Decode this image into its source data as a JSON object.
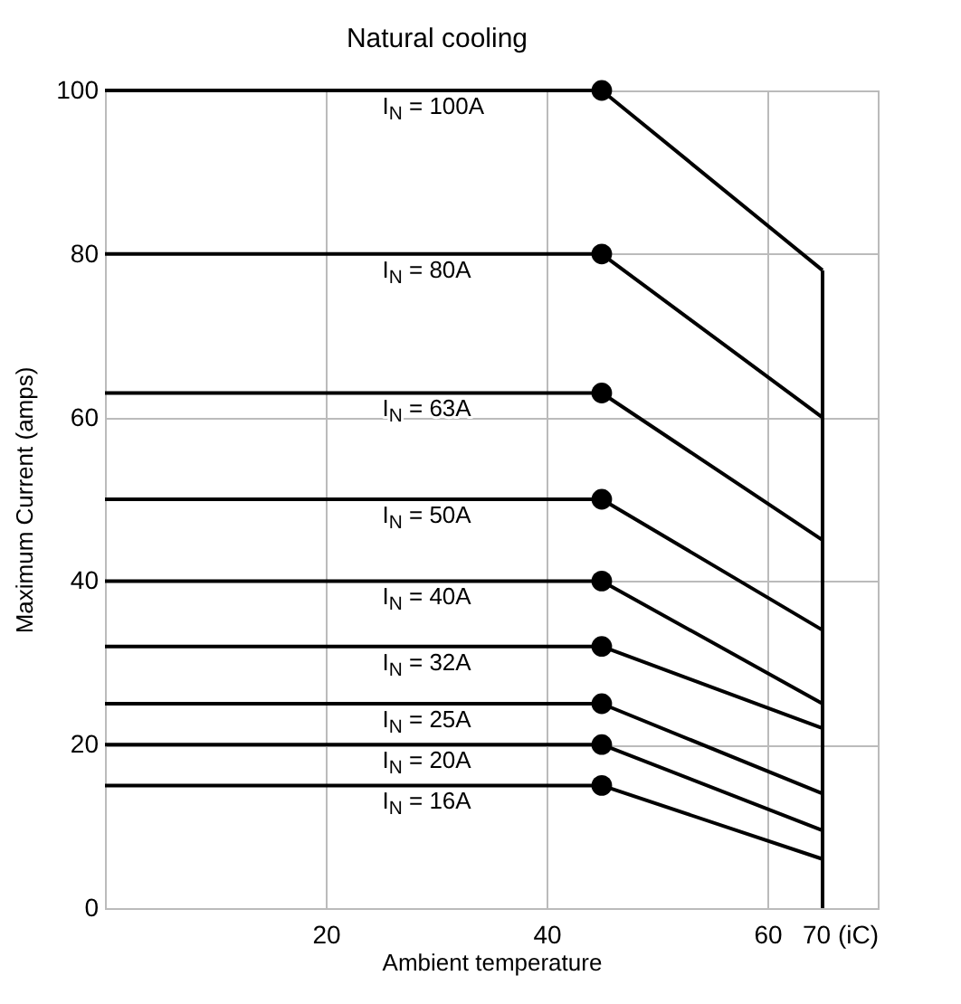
{
  "chart_data": {
    "type": "line",
    "title": "Natural cooling",
    "xlabel": "Ambient temperature",
    "ylabel": "Maximum Current (amps)",
    "xlim": [
      0,
      70
    ],
    "xticks": [
      20,
      40,
      60,
      {
        "value": 70,
        "label": "70 (iC)"
      }
    ],
    "ylim": [
      0,
      100
    ],
    "yticks": [
      0,
      20,
      40,
      60,
      80,
      100
    ],
    "grid": true,
    "legend": false,
    "series": [
      {
        "name": "I$_{N}$ = 100A",
        "color": "#000000",
        "x": [
          0,
          45,
          65
        ],
        "values": [
          100,
          100,
          78
        ]
      },
      {
        "name": "I$_{N}$ = 80A",
        "color": "#000000",
        "x": [
          0,
          45,
          65
        ],
        "values": [
          80,
          80,
          60
        ]
      },
      {
        "name": "I$_{N}$ = 63A",
        "color": "#000000",
        "x": [
          0,
          45,
          65
        ],
        "values": [
          63,
          63,
          45
        ]
      },
      {
        "name": "I$_{N}$ = 50A",
        "color": "#000000",
        "x": [
          0,
          45,
          65
        ],
        "values": [
          50,
          50,
          34
        ]
      },
      {
        "name": "I$_{N}$ = 40A",
        "color": "#000000",
        "x": [
          0,
          45,
          65
        ],
        "values": [
          40,
          40,
          25
        ]
      },
      {
        "name": "I$_{N}$ = 32A",
        "color": "#000000",
        "x": [
          0,
          45,
          65
        ],
        "values": [
          32,
          32,
          22
        ]
      },
      {
        "name": "I$_{N}$ = 25A",
        "color": "#000000",
        "x": [
          0,
          45,
          65
        ],
        "values": [
          25,
          25,
          14
        ]
      },
      {
        "name": "I$_{N}$ = 20A",
        "color": "#000000",
        "x": [
          0,
          45,
          65
        ],
        "values": [
          20,
          20,
          9.5
        ]
      },
      {
        "name": "I$_{N}$ = 16A",
        "color": "#000000",
        "x": [
          0,
          45,
          65
        ],
        "values": [
          15,
          15,
          6
        ]
      },
      {
        "type": "line",
        "color": "#000000",
        "x": [
          65,
          65
        ],
        "values": [
          0,
          78
        ]
      },
      {
        "type": "scatter",
        "marker": "circle",
        "color": "#000000",
        "x": [
          45,
          45,
          45,
          45,
          45,
          45,
          45,
          45,
          45
        ],
        "values": [
          100,
          80,
          63,
          50,
          40,
          32,
          25,
          20,
          15
        ]
      }
    ]
  }
}
